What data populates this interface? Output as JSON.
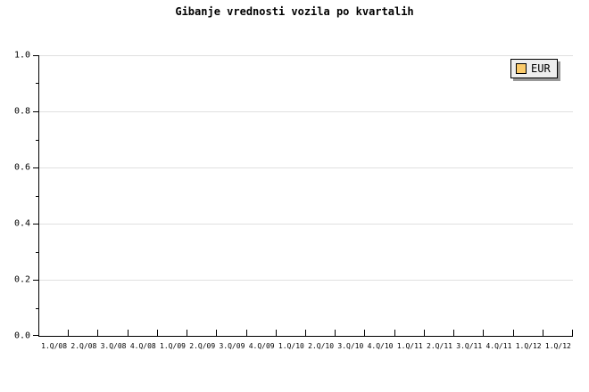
{
  "title": "Gibanje vrednosti vozila po kvartalih",
  "legend": {
    "label": "EUR",
    "swatch_color": "#FBCB6B",
    "background": "#eeeeee",
    "border": "#000000",
    "shadow": "#999999",
    "position": "top-right"
  },
  "colors": {
    "background": "#ffffff",
    "axis": "#000000",
    "grid": "#e0e0e0",
    "text": "#000000"
  },
  "chart_data": {
    "type": "line",
    "title": "Gibanje vrednosti vozila po kvartalih",
    "xlabel": "",
    "ylabel": "",
    "ylim": [
      0.0,
      1.0
    ],
    "grid": "horizontal-major",
    "grid_color": "#e0e0e0",
    "legend_position": "top-right",
    "y_major_ticks": [
      0.0,
      0.2,
      0.4,
      0.6,
      0.8,
      1.0
    ],
    "y_tick_labels": [
      "0.0",
      "0.2",
      "0.4",
      "0.6",
      "0.8",
      "1.0"
    ],
    "y_minor_ticks": [
      0.1,
      0.3,
      0.5,
      0.7,
      0.9
    ],
    "x_tick_labels": [
      "1.Q/08",
      "2.Q/08",
      "3.Q/08",
      "4.Q/08",
      "1.Q/09",
      "2.Q/09",
      "3.Q/09",
      "4.Q/09",
      "1.Q/10",
      "2.Q/10",
      "3.Q/10",
      "4.Q/10",
      "1.Q/11",
      "2.Q/11",
      "3.Q/11",
      "4.Q/11",
      "1.Q/12",
      "1.Q/12"
    ],
    "series": [
      {
        "name": "EUR",
        "color": "#FBCB6B",
        "values": []
      }
    ]
  }
}
